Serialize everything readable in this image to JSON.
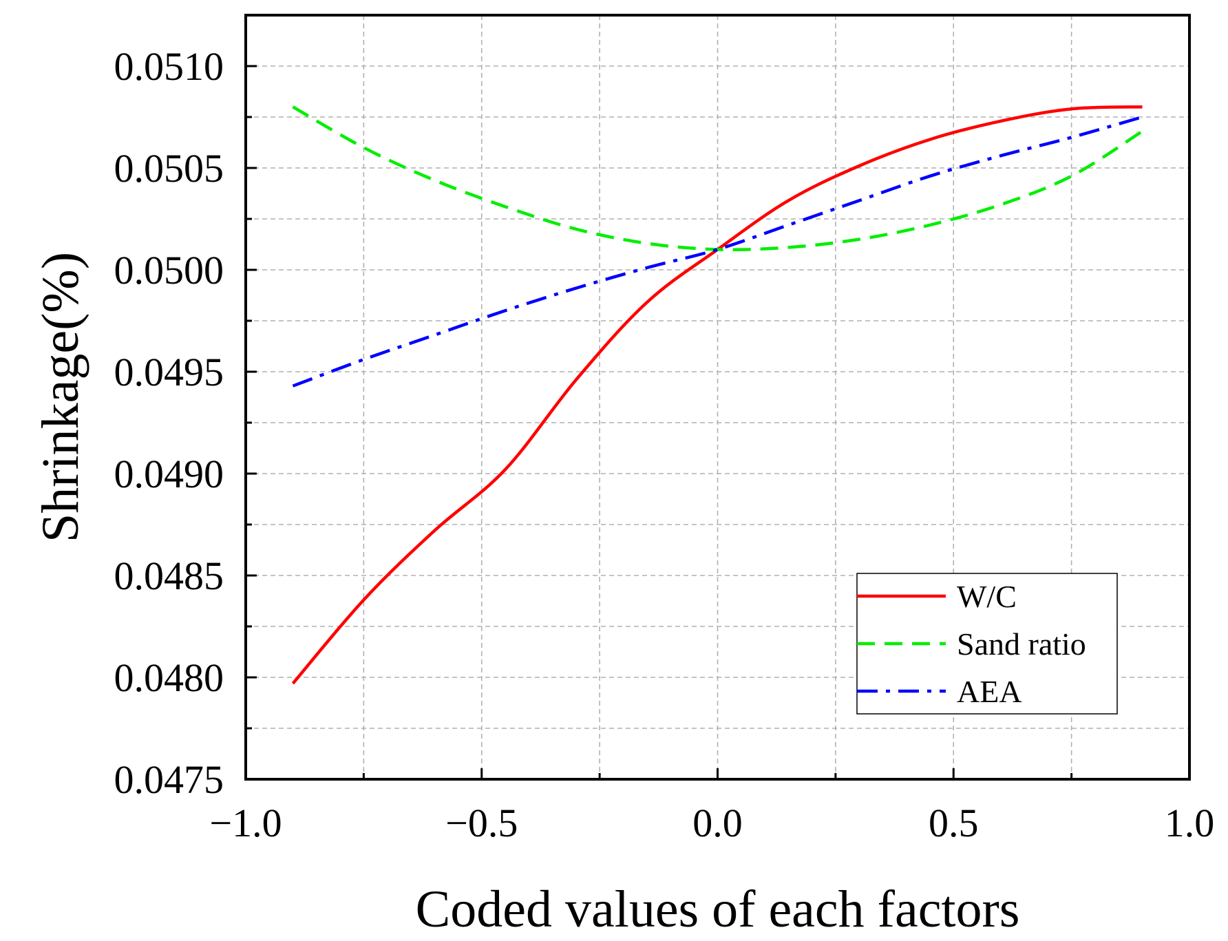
{
  "chart_data": {
    "type": "line",
    "xlabel": "Coded values of each factors",
    "ylabel": "Shrinkage(%)",
    "xlim": [
      -1.0,
      1.0
    ],
    "ylim": [
      0.0475,
      0.05125
    ],
    "x_ticks": [
      "−1.0",
      "−0.5",
      "0.0",
      "0.5",
      "1.0"
    ],
    "y_ticks": [
      "0.0475",
      "0.0480",
      "0.0485",
      "0.0490",
      "0.0495",
      "0.0500",
      "0.0505",
      "0.0510"
    ],
    "grid": true,
    "legend_position": "bottom-right",
    "x": [
      -0.9,
      -0.75,
      -0.6,
      -0.45,
      -0.3,
      -0.15,
      0.0,
      0.15,
      0.3,
      0.45,
      0.6,
      0.75,
      0.9
    ],
    "series": [
      {
        "name": "W/C",
        "color": "#ff0000",
        "style": "solid",
        "values": [
          0.04797,
          0.04838,
          0.04872,
          0.04902,
          0.04946,
          0.04984,
          0.0501,
          0.05034,
          0.05051,
          0.05064,
          0.05073,
          0.05079,
          0.0508
        ]
      },
      {
        "name": "Sand ratio",
        "color": "#00ee00",
        "style": "dashed",
        "values": [
          0.0508,
          0.0506,
          0.05044,
          0.05031,
          0.0502,
          0.05013,
          0.0501,
          0.05011,
          0.05015,
          0.05022,
          0.05032,
          0.05046,
          0.05068
        ]
      },
      {
        "name": "AEA",
        "color": "#0000ff",
        "style": "dashdot",
        "values": [
          0.04943,
          0.04956,
          0.04968,
          0.0498,
          0.04991,
          0.05001,
          0.0501,
          0.05022,
          0.05034,
          0.05046,
          0.05056,
          0.05065,
          0.05075
        ]
      }
    ]
  }
}
